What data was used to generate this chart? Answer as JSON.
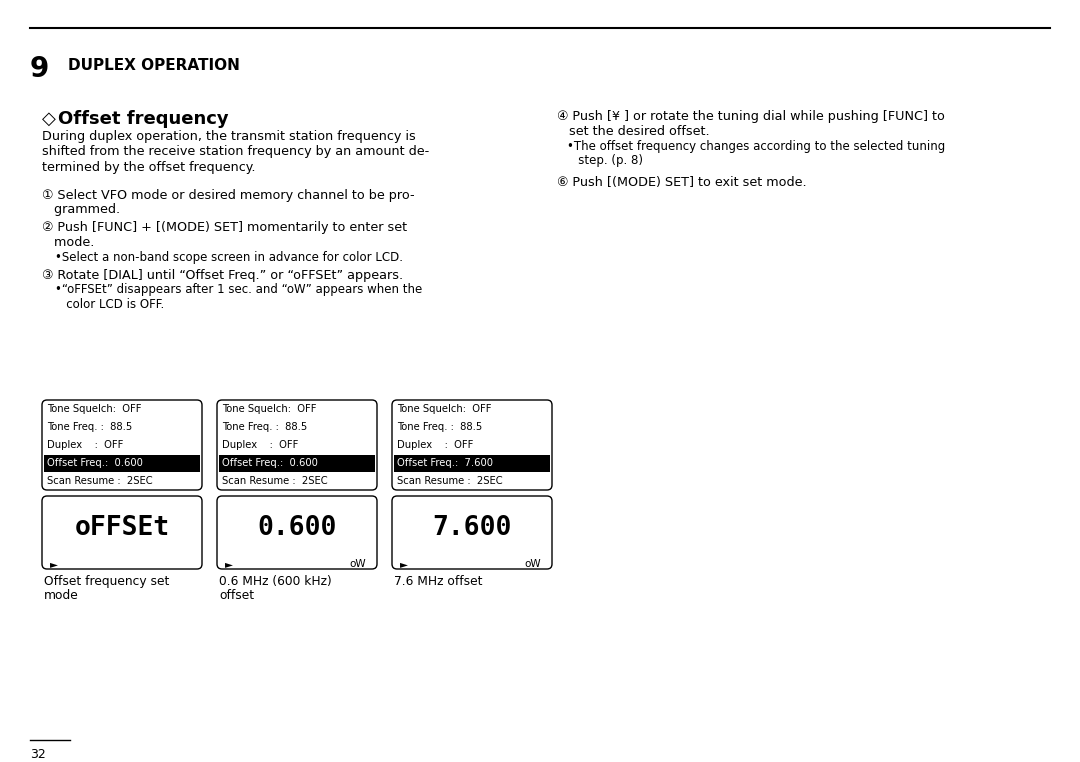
{
  "title_number": "9",
  "title_text": "DUPLEX OPERATION",
  "section_title_diamond": "◇",
  "section_title_text": "Offset frequency",
  "body_lines": [
    "During duplex operation, the transmit station frequency is",
    "shifted from the receive station frequency by an amount de-",
    "termined by the offset frequency."
  ],
  "step1_line1": "① Select VFO mode or desired memory channel to be pro-",
  "step1_line2": "   grammed.",
  "step2_line1": "② Push [FUNC] + [(MODE) SET] momentarily to enter set",
  "step2_line2": "   mode.",
  "substep1": "•Select a non-band scope screen in advance for color LCD.",
  "step3_line1": "③ Rotate [DIAL] until “Offset Freq.” or “oFFSEt” appears.",
  "substep2_line1": "•“oFFSEt” disappears after 1 sec. and “oW” appears when the",
  "substep2_line2": "   color LCD is OFF.",
  "step4_line1": "④ Push [¥ ] or rotate the tuning dial while pushing [FUNC] to",
  "step4_line2": "   set the desired offset.",
  "substep4_line1": "•The offset frequency changes according to the selected tuning",
  "substep4_line2": "   step. (p. 8)",
  "step5": "⑥ Push [(MODE) SET] to exit set mode.",
  "panel_rows_12": [
    "Tone Squelch:  OFF",
    "Tone Freq. :  88.5",
    "Duplex    :  OFF",
    "Offset Freq.:  0.600",
    "Scan Resume :  2SEC"
  ],
  "panel_rows_3": [
    "Tone Squelch:  OFF",
    "Tone Freq. :  88.5",
    "Duplex    :  OFF",
    "Offset Freq.:  7.600",
    "Scan Resume :  2SEC"
  ],
  "highlight_row": 3,
  "lcd_texts": [
    "oFFSEt",
    "0.600",
    "7.600"
  ],
  "lcd_arrow": "►",
  "lcd_ow": "oW",
  "captions": [
    [
      "Offset frequency set",
      "mode"
    ],
    [
      "0.6 MHz (600 kHz)",
      "offset"
    ],
    [
      "7.6 MHz offset"
    ]
  ],
  "page_number": "32",
  "bg_color": "#ffffff",
  "line_color": "#000000"
}
